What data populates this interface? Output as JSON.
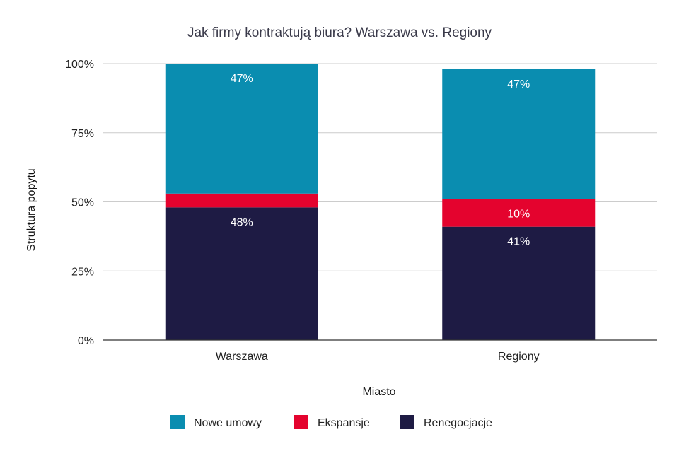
{
  "chart_data": {
    "type": "bar",
    "stacked": true,
    "title": "Jak firmy kontraktują biura? Warszawa vs. Regiony",
    "xlabel": "Miasto",
    "ylabel": "Struktura popytu",
    "ylim": [
      0,
      100
    ],
    "y_ticks": [
      "0%",
      "25%",
      "50%",
      "75%",
      "100%"
    ],
    "y_tick_values": [
      0,
      25,
      50,
      75,
      100
    ],
    "categories": [
      "Warszawa",
      "Regiony"
    ],
    "series": [
      {
        "name": "Renegocjacje",
        "values": [
          48,
          41
        ],
        "labels": [
          "48%",
          "41%"
        ],
        "color": "#1e1b44"
      },
      {
        "name": "Ekspansje",
        "values": [
          5,
          10
        ],
        "labels": [
          "",
          "10%"
        ],
        "color": "#e4032e"
      },
      {
        "name": "Nowe umowy",
        "values": [
          47,
          47
        ],
        "labels": [
          "47%",
          "47%"
        ],
        "color": "#0a8db0"
      }
    ],
    "legend_order": [
      "Nowe umowy",
      "Ekspansje",
      "Renegocjacje"
    ],
    "legend_position": "bottom",
    "grid": true
  }
}
